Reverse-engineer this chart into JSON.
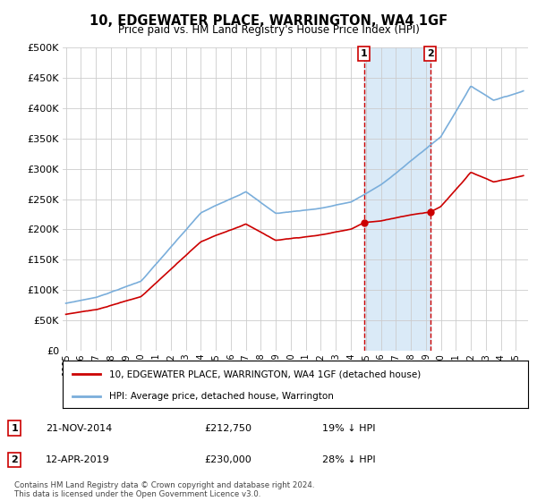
{
  "title": "10, EDGEWATER PLACE, WARRINGTON, WA4 1GF",
  "subtitle": "Price paid vs. HM Land Registry's House Price Index (HPI)",
  "ylim": [
    0,
    500000
  ],
  "ytick_values": [
    0,
    50000,
    100000,
    150000,
    200000,
    250000,
    300000,
    350000,
    400000,
    450000,
    500000
  ],
  "sale1_date": "21-NOV-2014",
  "sale1_price": 212750,
  "sale1_hpi_pct": "19% ↓ HPI",
  "sale1_year": 2014.88,
  "sale2_date": "12-APR-2019",
  "sale2_price": 230000,
  "sale2_hpi_pct": "28% ↓ HPI",
  "sale2_year": 2019.28,
  "legend_line1": "10, EDGEWATER PLACE, WARRINGTON, WA4 1GF (detached house)",
  "legend_line2": "HPI: Average price, detached house, Warrington",
  "footer": "Contains HM Land Registry data © Crown copyright and database right 2024.\nThis data is licensed under the Open Government Licence v3.0.",
  "hpi_color": "#7aaedb",
  "price_color": "#cc0000",
  "vline_color": "#cc0000",
  "shade_color": "#daeaf7",
  "background_color": "#ffffff",
  "grid_color": "#cccccc",
  "xlim_left": 1994.8,
  "xlim_right": 2025.8
}
